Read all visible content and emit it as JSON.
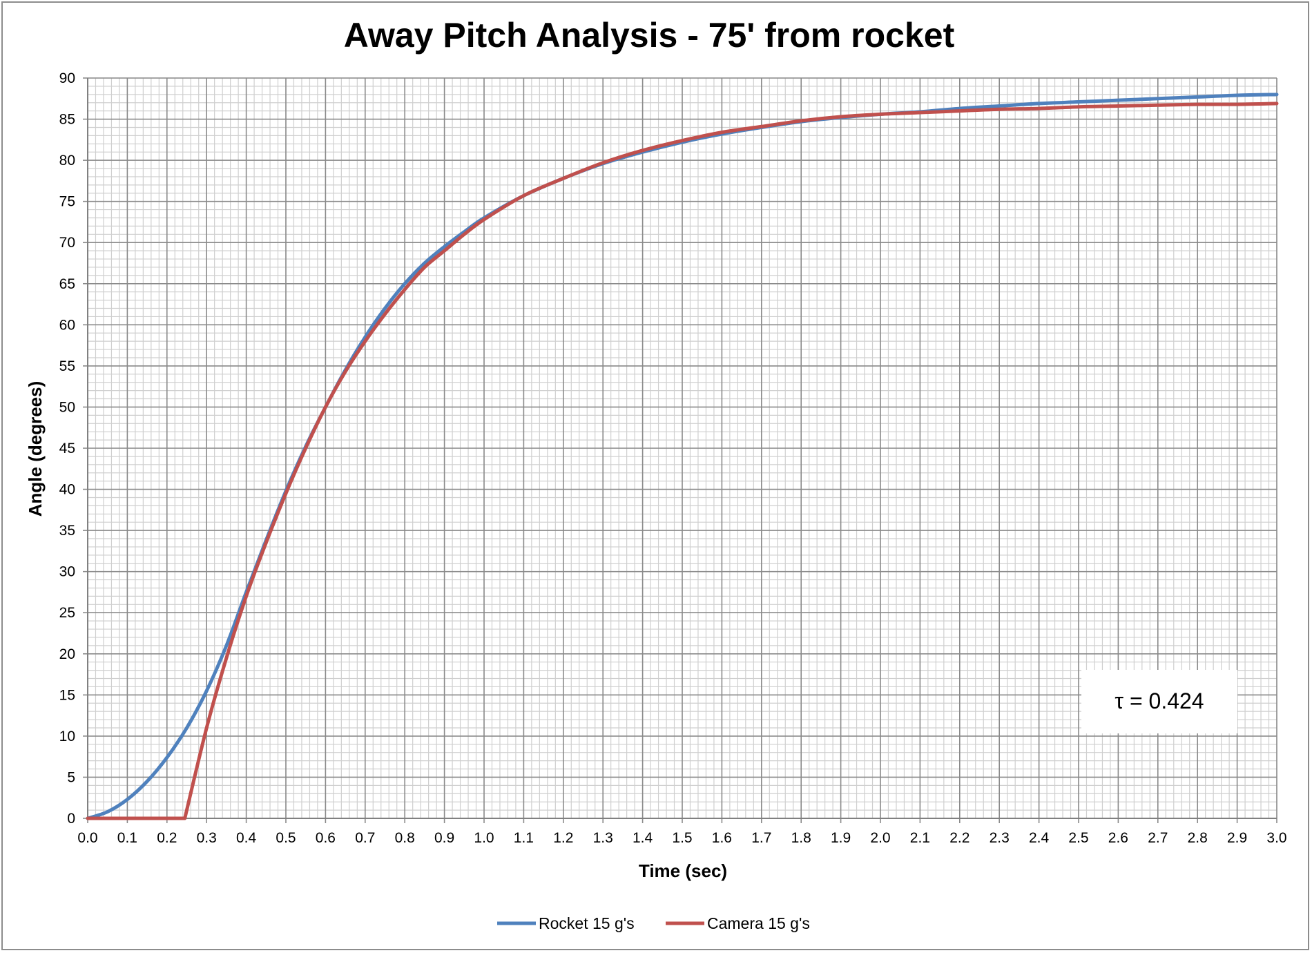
{
  "chart_data": {
    "type": "line",
    "title": "Away Pitch Analysis - 75' from rocket",
    "xlabel": "Time (sec)",
    "ylabel": "Angle (degrees)",
    "xlim": [
      0,
      3.0
    ],
    "ylim": [
      0,
      90
    ],
    "x_major_step": 0.1,
    "x_minor_step": 0.02,
    "y_major_step": 5,
    "y_minor_step": 1,
    "x_ticks": [
      "0.0",
      "0.1",
      "0.2",
      "0.3",
      "0.4",
      "0.5",
      "0.6",
      "0.7",
      "0.8",
      "0.9",
      "1.0",
      "1.1",
      "1.2",
      "1.3",
      "1.4",
      "1.5",
      "1.6",
      "1.7",
      "1.8",
      "1.9",
      "2.0",
      "2.1",
      "2.2",
      "2.3",
      "2.4",
      "2.5",
      "2.6",
      "2.7",
      "2.8",
      "2.9",
      "3.0"
    ],
    "y_ticks": [
      "0",
      "5",
      "10",
      "15",
      "20",
      "25",
      "30",
      "35",
      "40",
      "45",
      "50",
      "55",
      "60",
      "65",
      "70",
      "75",
      "80",
      "85",
      "90"
    ],
    "grid": true,
    "legend_position": "bottom",
    "annotation": "τ = 0.424",
    "series": [
      {
        "name": "Rocket 15 g's",
        "color": "#4f81bd",
        "x": [
          0.0,
          0.05,
          0.1,
          0.15,
          0.2,
          0.25,
          0.3,
          0.35,
          0.4,
          0.45,
          0.5,
          0.55,
          0.6,
          0.65,
          0.7,
          0.75,
          0.8,
          0.85,
          0.9,
          0.95,
          1.0,
          1.1,
          1.2,
          1.3,
          1.4,
          1.5,
          1.6,
          1.7,
          1.8,
          1.9,
          2.0,
          2.1,
          2.2,
          2.3,
          2.4,
          2.5,
          2.6,
          2.7,
          2.8,
          2.9,
          3.0
        ],
        "values": [
          0,
          0.8,
          2.3,
          4.5,
          7.4,
          11.0,
          15.5,
          21.0,
          27.5,
          33.8,
          39.8,
          45.2,
          50.0,
          54.5,
          58.5,
          62.0,
          65.0,
          67.5,
          69.5,
          71.3,
          73.0,
          75.7,
          77.8,
          79.6,
          81.0,
          82.2,
          83.2,
          84.0,
          84.7,
          85.2,
          85.6,
          85.9,
          86.3,
          86.6,
          86.9,
          87.1,
          87.3,
          87.5,
          87.7,
          87.9,
          88.0
        ]
      },
      {
        "name": "Camera 15 g's",
        "color": "#c0504d",
        "x": [
          0.0,
          0.1,
          0.2,
          0.245,
          0.3,
          0.35,
          0.4,
          0.45,
          0.5,
          0.55,
          0.6,
          0.65,
          0.7,
          0.75,
          0.8,
          0.85,
          0.9,
          0.95,
          1.0,
          1.1,
          1.2,
          1.3,
          1.4,
          1.5,
          1.6,
          1.7,
          1.8,
          1.9,
          2.0,
          2.1,
          2.2,
          2.3,
          2.4,
          2.5,
          2.6,
          2.7,
          2.8,
          2.9,
          3.0
        ],
        "values": [
          0,
          0,
          0,
          0,
          11.0,
          19.5,
          27.0,
          33.5,
          39.5,
          45.0,
          50.0,
          54.3,
          58.0,
          61.3,
          64.3,
          67.0,
          69.0,
          71.0,
          72.8,
          75.7,
          77.8,
          79.7,
          81.2,
          82.4,
          83.4,
          84.1,
          84.8,
          85.3,
          85.6,
          85.8,
          86.0,
          86.2,
          86.3,
          86.5,
          86.6,
          86.7,
          86.8,
          86.8,
          86.9
        ]
      }
    ]
  }
}
